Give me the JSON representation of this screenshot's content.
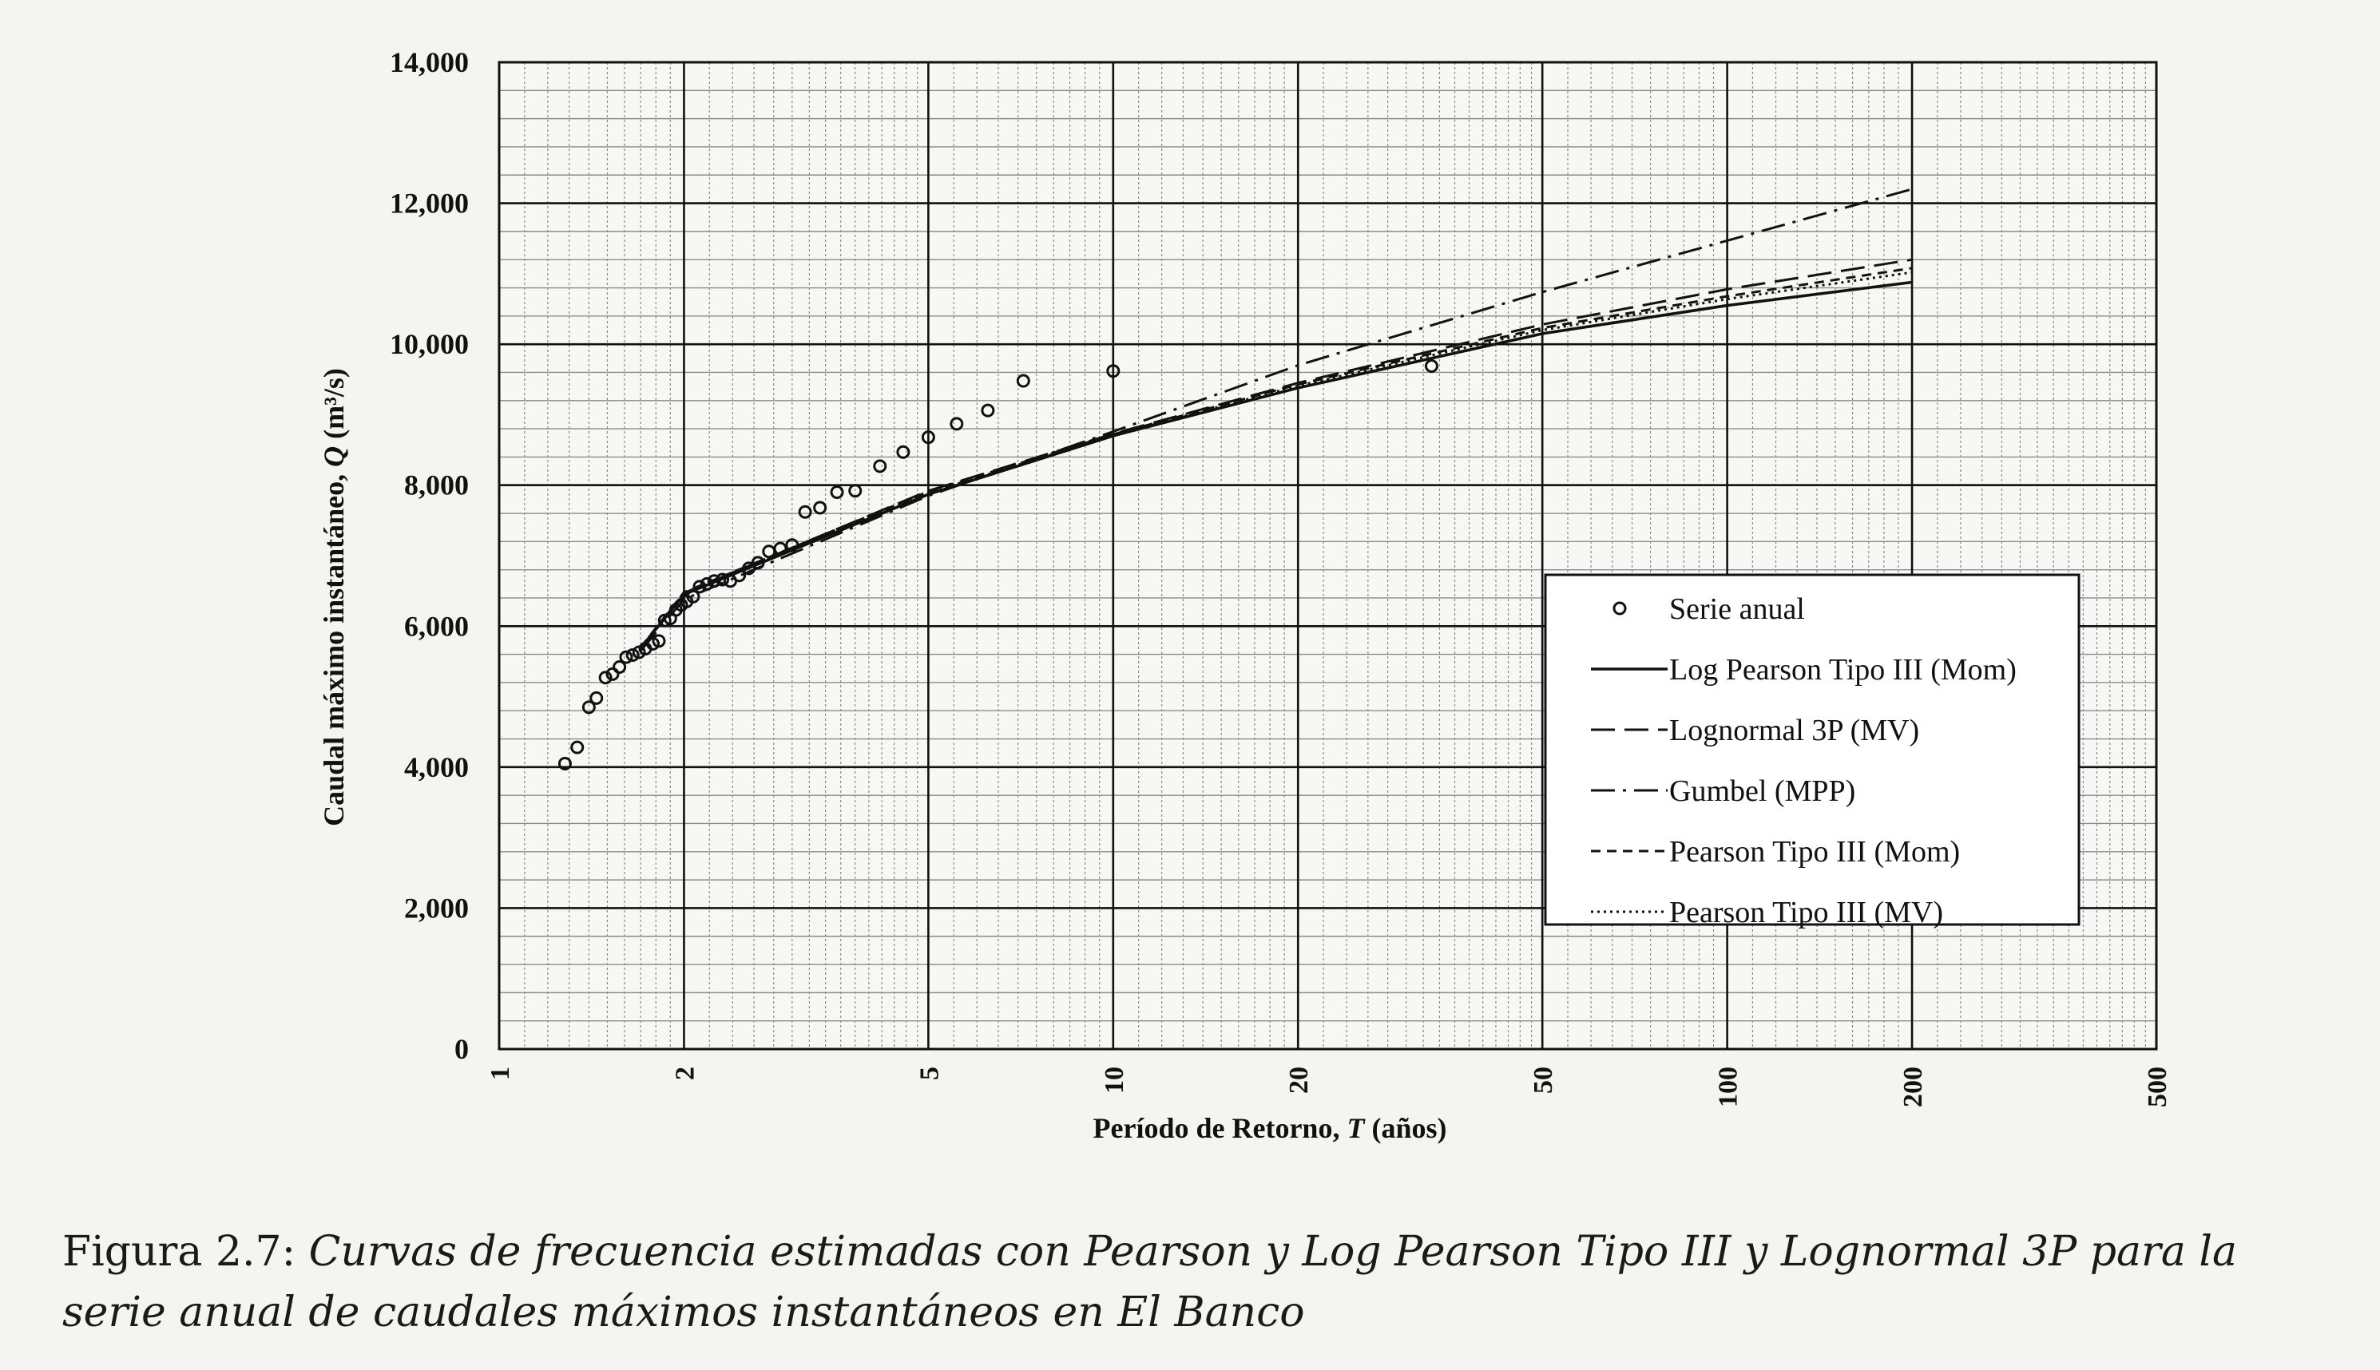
{
  "chart_data": {
    "type": "line",
    "x_scale": "log",
    "x_label_prefix": "Período de Retorno, ",
    "x_label_var": "T",
    "x_label_suffix": " (años)",
    "y_label_prefix": "Caudal máximo instantáneo, ",
    "y_label_var": "Q",
    "y_label_suffix": " (m³/s)",
    "xlim": [
      1,
      500
    ],
    "ylim": [
      0,
      14000
    ],
    "x_ticks": [
      1,
      2,
      5,
      10,
      20,
      50,
      100,
      200,
      500
    ],
    "x_tick_labels": [
      "1",
      "2",
      "5",
      "10",
      "20",
      "50",
      "100",
      "200",
      "500"
    ],
    "y_ticks": [
      0,
      2000,
      4000,
      6000,
      8000,
      10000,
      12000,
      14000
    ],
    "y_tick_labels": [
      "0",
      "2,000",
      "4,000",
      "6,000",
      "8,000",
      "10,000",
      "12,000",
      "14,000"
    ],
    "grid": true,
    "legend_position": "lower-right",
    "series": [
      {
        "name": "Serie anual",
        "style": "circles",
        "points": [
          [
            1.28,
            4050
          ],
          [
            1.34,
            4280
          ],
          [
            1.4,
            4850
          ],
          [
            1.44,
            4980
          ],
          [
            1.49,
            5270
          ],
          [
            1.53,
            5320
          ],
          [
            1.57,
            5420
          ],
          [
            1.61,
            5560
          ],
          [
            1.65,
            5590
          ],
          [
            1.69,
            5630
          ],
          [
            1.73,
            5680
          ],
          [
            1.78,
            5750
          ],
          [
            1.82,
            5790
          ],
          [
            1.86,
            6080
          ],
          [
            1.9,
            6110
          ],
          [
            1.94,
            6230
          ],
          [
            1.98,
            6300
          ],
          [
            2.02,
            6350
          ],
          [
            2.07,
            6420
          ],
          [
            2.12,
            6560
          ],
          [
            2.18,
            6600
          ],
          [
            2.24,
            6640
          ],
          [
            2.31,
            6660
          ],
          [
            2.38,
            6640
          ],
          [
            2.46,
            6720
          ],
          [
            2.55,
            6820
          ],
          [
            2.64,
            6900
          ],
          [
            2.75,
            7060
          ],
          [
            2.87,
            7100
          ],
          [
            3.0,
            7150
          ],
          [
            3.15,
            7620
          ],
          [
            3.33,
            7680
          ],
          [
            3.55,
            7900
          ],
          [
            3.8,
            7920
          ],
          [
            4.17,
            8270
          ],
          [
            4.55,
            8470
          ],
          [
            5.0,
            8680
          ],
          [
            5.56,
            8870
          ],
          [
            6.25,
            9060
          ],
          [
            7.14,
            9480
          ],
          [
            10.0,
            9620
          ],
          [
            33.0,
            9690
          ]
        ]
      },
      {
        "name": "Log Pearson Tipo III (Mom)",
        "style": "solid",
        "points": [
          [
            1.7,
            5690
          ],
          [
            2,
            6450
          ],
          [
            5,
            7870
          ],
          [
            10,
            8700
          ],
          [
            20,
            9380
          ],
          [
            50,
            10150
          ],
          [
            100,
            10550
          ],
          [
            200,
            10880
          ]
        ]
      },
      {
        "name": "Lognormal 3P (MV)",
        "style": "longdash",
        "points": [
          [
            1.7,
            5690
          ],
          [
            2,
            6470
          ],
          [
            5,
            7920
          ],
          [
            10,
            8730
          ],
          [
            20,
            9450
          ],
          [
            50,
            10280
          ],
          [
            100,
            10780
          ],
          [
            200,
            11200
          ]
        ]
      },
      {
        "name": "Gumbel (MPP)",
        "style": "dashdot",
        "points": [
          [
            1.7,
            5650
          ],
          [
            2,
            6380
          ],
          [
            5,
            7850
          ],
          [
            10,
            8760
          ],
          [
            20,
            9700
          ],
          [
            50,
            10740
          ],
          [
            100,
            11470
          ],
          [
            200,
            12200
          ]
        ]
      },
      {
        "name": "Pearson Tipo III (Mom)",
        "style": "dash",
        "points": [
          [
            1.7,
            5700
          ],
          [
            2,
            6480
          ],
          [
            5,
            7910
          ],
          [
            10,
            8720
          ],
          [
            20,
            9430
          ],
          [
            50,
            10230
          ],
          [
            100,
            10680
          ],
          [
            200,
            11080
          ]
        ]
      },
      {
        "name": "Pearson Tipo III (MV)",
        "style": "dotted",
        "points": [
          [
            1.7,
            5700
          ],
          [
            2,
            6460
          ],
          [
            5,
            7890
          ],
          [
            10,
            8710
          ],
          [
            20,
            9410
          ],
          [
            50,
            10200
          ],
          [
            100,
            10640
          ],
          [
            200,
            11020
          ]
        ]
      }
    ]
  },
  "caption": {
    "label": "Figura 2.7:",
    "line1": "Curvas de frecuencia estimadas con Pearson y Log Pearson Tipo III y Lognormal 3P para la",
    "line2": "serie anual de caudales máximos instantáneos en El Banco"
  },
  "colors": {
    "ink": "#111111",
    "grid_minor": "#8a8a8a",
    "paper": "#f4f4f2"
  }
}
